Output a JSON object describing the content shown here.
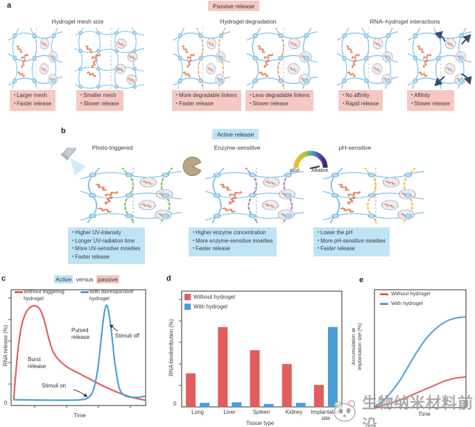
{
  "panel_labels": {
    "a": "a",
    "b": "b",
    "c": "c",
    "d": "d",
    "e": "e"
  },
  "panel_a": {
    "badge": "Passive release",
    "sections": [
      {
        "title": "Hydrogel mesh size",
        "cards": [
          {
            "bullets": [
              "Larger mesh",
              "Faster release"
            ]
          },
          {
            "bullets": [
              "Smaller mesh",
              "Slower release"
            ]
          }
        ]
      },
      {
        "title": "Hydrogel degradation",
        "cards": [
          {
            "bullets": [
              "More degradable linkers",
              "Faster release"
            ]
          },
          {
            "bullets": [
              "Less degradable linkers",
              "Slower release"
            ]
          }
        ]
      },
      {
        "title": "RNA–hydrogel interactions",
        "cards": [
          {
            "bullets": [
              "No affinity",
              "Rapid release"
            ]
          },
          {
            "bullets": [
              "Affinity",
              "Slower release"
            ]
          }
        ]
      }
    ]
  },
  "panel_b": {
    "badge": "Active release",
    "sections": [
      {
        "title": "Photo-triggered",
        "bullets": [
          "Higher UV-intensity",
          "Longer UV-radiation time",
          "More UV-sensitive moeities",
          "Faster release"
        ]
      },
      {
        "title": "Enzyme-sensitive",
        "bullets": [
          "Higher enzyme concentration",
          "More enzyme-sensitive moeities",
          "Faster release"
        ]
      },
      {
        "title": "pH-sensitive",
        "gauge_left": "Acid",
        "gauge_right": "Alkaline",
        "bullets": [
          "Lower the pH",
          "More pH-sensitive moeities",
          "Faster release"
        ]
      }
    ]
  },
  "chart_data": [
    {
      "id": "c",
      "type": "line",
      "title": "Active versus passive",
      "title_parts": [
        {
          "text": "Active",
          "highlight": "#bee4f6"
        },
        {
          "text": " versus ",
          "highlight": ""
        },
        {
          "text": "passive",
          "highlight": "#f5c8c4"
        }
      ],
      "xlabel": "Time",
      "ylabel": "RNA release (%)",
      "origin_label": "0",
      "xlim": [
        0,
        1
      ],
      "ylim": [
        0,
        1
      ],
      "legend_position": "top-inside",
      "series": [
        {
          "name": "Without triggering hydrogel",
          "color": "#e25d5d",
          "points": [
            [
              0.02,
              0.06
            ],
            [
              0.035,
              0.28
            ],
            [
              0.055,
              0.52
            ],
            [
              0.08,
              0.7
            ],
            [
              0.11,
              0.8
            ],
            [
              0.145,
              0.85
            ],
            [
              0.185,
              0.86
            ],
            [
              0.22,
              0.82
            ],
            [
              0.25,
              0.72
            ],
            [
              0.28,
              0.58
            ],
            [
              0.31,
              0.47
            ],
            [
              0.35,
              0.4
            ],
            [
              0.42,
              0.33
            ],
            [
              0.5,
              0.28
            ],
            [
              0.6,
              0.22
            ],
            [
              0.7,
              0.16
            ],
            [
              0.8,
              0.11
            ],
            [
              0.9,
              0.07
            ],
            [
              1.0,
              0.045
            ]
          ]
        },
        {
          "name": "With bioresponsive hydrogel",
          "color": "#4a9ed6",
          "points": [
            [
              0.02,
              0.05
            ],
            [
              0.15,
              0.048
            ],
            [
              0.3,
              0.046
            ],
            [
              0.45,
              0.046
            ],
            [
              0.52,
              0.05
            ],
            [
              0.57,
              0.065
            ],
            [
              0.61,
              0.13
            ],
            [
              0.645,
              0.32
            ],
            [
              0.67,
              0.58
            ],
            [
              0.69,
              0.78
            ],
            [
              0.705,
              0.86
            ],
            [
              0.72,
              0.84
            ],
            [
              0.745,
              0.65
            ],
            [
              0.77,
              0.38
            ],
            [
              0.8,
              0.17
            ],
            [
              0.83,
              0.1
            ],
            [
              0.87,
              0.075
            ],
            [
              0.93,
              0.07
            ],
            [
              1.0,
              0.08
            ]
          ]
        }
      ],
      "annotations": {
        "burst": "Burst release",
        "pulsed": "Pulsed release",
        "stimuli_on": "Stimuli on",
        "stimuli_off": "Stimuli off"
      }
    },
    {
      "id": "d",
      "type": "bar",
      "xlabel": "Tissue type",
      "ylabel": "RNA biodistribution (%)",
      "origin_label": "0",
      "ylim": [
        0,
        100
      ],
      "legend_position": "top-left-inside",
      "categories": [
        "Lung",
        "Liver",
        "Spleen",
        "Kidney",
        "Implantation site"
      ],
      "series": [
        {
          "name": "Without hydrogel",
          "color": "#e25d5d",
          "values": [
            29,
            69,
            49,
            37,
            19
          ]
        },
        {
          "name": "With hydrogel",
          "color": "#4a9ed6",
          "values": [
            3.5,
            4,
            2.5,
            3.5,
            69
          ]
        }
      ]
    },
    {
      "id": "e",
      "type": "line",
      "xlabel": "Time",
      "ylabel": "Accumulation at implantation site (%)",
      "xlim": [
        0,
        1
      ],
      "ylim": [
        0,
        1
      ],
      "legend_position": "top-inside",
      "series": [
        {
          "name": "Without hydrogel",
          "color": "#e25d5d",
          "points": [
            [
              0.0,
              0.005
            ],
            [
              0.15,
              0.03
            ],
            [
              0.3,
              0.07
            ],
            [
              0.45,
              0.12
            ],
            [
              0.6,
              0.17
            ],
            [
              0.75,
              0.22
            ],
            [
              0.88,
              0.25
            ],
            [
              1.0,
              0.26
            ]
          ]
        },
        {
          "name": "With hydrogel",
          "color": "#4a9ed6",
          "points": [
            [
              0.0,
              0.01
            ],
            [
              0.08,
              0.05
            ],
            [
              0.17,
              0.12
            ],
            [
              0.27,
              0.22
            ],
            [
              0.37,
              0.35
            ],
            [
              0.47,
              0.48
            ],
            [
              0.57,
              0.59
            ],
            [
              0.67,
              0.67
            ],
            [
              0.78,
              0.73
            ],
            [
              0.89,
              0.76
            ],
            [
              1.0,
              0.77
            ]
          ]
        }
      ]
    }
  ],
  "watermark": {
    "text": "生物纳米材料前沿",
    "logo": "panda-sketch-logo"
  },
  "colors": {
    "passive_highlight": "#f5c8c4",
    "active_highlight": "#bee4f6",
    "red_series": "#e25d5d",
    "blue_series": "#4a9ed6",
    "mesh_blue": "#7cc0ea",
    "mesh_node": "#b7ddf5",
    "rna_orange": "#e8855c",
    "particle_gray": "#e9e9f0",
    "linker_green": "#76c468",
    "linker_purple": "#9d87c9",
    "linker_yellow": "#f0c549",
    "linker_orange": "#ef9150",
    "arrow_navy": "#35506e",
    "axis_gray": "#4d4d4d"
  }
}
